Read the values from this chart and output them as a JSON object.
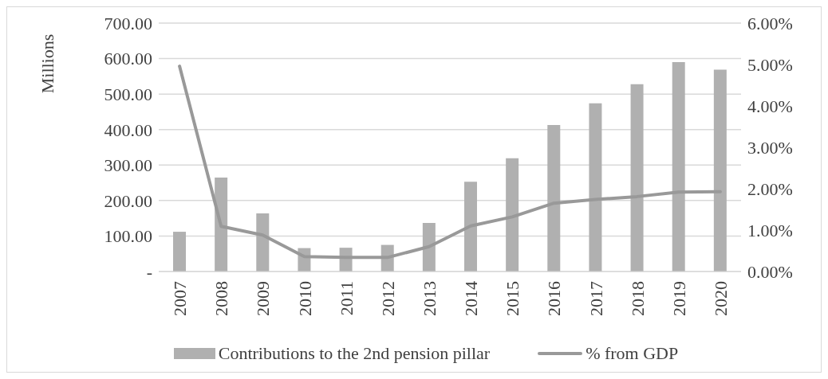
{
  "chart_data": {
    "type": "bar",
    "ylabel": "Millions",
    "categories": [
      "2007",
      "2008",
      "2009",
      "2010",
      "2011",
      "2012",
      "2013",
      "2014",
      "2015",
      "2016",
      "2017",
      "2018",
      "2019",
      "2020"
    ],
    "series": [
      {
        "name": "Contributions to the 2nd pension pillar",
        "color": "#b0b0b0",
        "values": [
          112,
          265,
          164,
          66,
          67,
          75,
          137,
          253,
          319,
          413,
          474,
          528,
          590,
          569
        ]
      },
      {
        "name": "% from GDP",
        "type": "line",
        "axis": "y2",
        "color": "#999999",
        "marker": "none",
        "values": [
          4.96,
          1.09,
          0.88,
          0.36,
          0.34,
          0.34,
          0.6,
          1.1,
          1.32,
          1.65,
          1.74,
          1.81,
          1.92,
          1.93
        ]
      }
    ],
    "ylim": [
      0,
      700
    ],
    "yticks": [
      {
        "value": 0,
        "label": "-"
      },
      {
        "value": 100,
        "label": "100.00"
      },
      {
        "value": 200,
        "label": "200.00"
      },
      {
        "value": 300,
        "label": "300.00"
      },
      {
        "value": 400,
        "label": "400.00"
      },
      {
        "value": 500,
        "label": "500.00"
      },
      {
        "value": 600,
        "label": "600.00"
      },
      {
        "value": 700,
        "label": "700.00"
      }
    ],
    "y2lim": [
      0,
      6
    ],
    "y2ticks": [
      {
        "value": 0,
        "label": "0.00%"
      },
      {
        "value": 1,
        "label": "1.00%"
      },
      {
        "value": 2,
        "label": "2.00%"
      },
      {
        "value": 3,
        "label": "3.00%"
      },
      {
        "value": 4,
        "label": "4.00%"
      },
      {
        "value": 5,
        "label": "5.00%"
      },
      {
        "value": 6,
        "label": "6.00%"
      }
    ],
    "grid": "y",
    "legend": "bottom"
  }
}
